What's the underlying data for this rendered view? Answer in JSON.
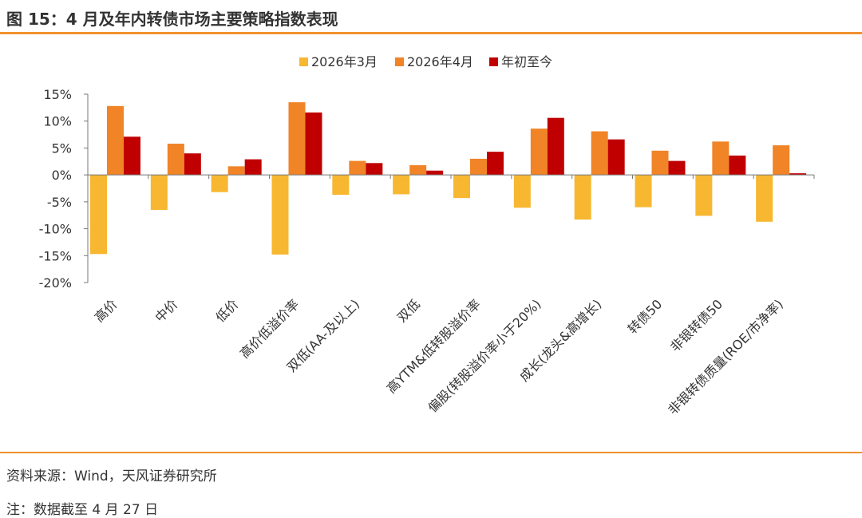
{
  "header": {
    "title": "图 15：4 月及年内转债市场主要策略指数表现"
  },
  "footer": {
    "source": "资料来源：Wind，天风证券研究所",
    "note": "注：数据截至 4 月 27 日"
  },
  "chart_data": {
    "type": "bar",
    "title": "",
    "xlabel": "",
    "ylabel": "",
    "ylim": [
      -20,
      15
    ],
    "yticks": [
      15,
      10,
      5,
      0,
      -5,
      -10,
      -15,
      -20
    ],
    "ytick_labels": [
      "15%",
      "10%",
      "5%",
      "0%",
      "-5%",
      "-10%",
      "-15%",
      "-20%"
    ],
    "grid": false,
    "legend_position": "top-center",
    "categories": [
      "高价",
      "中价",
      "低价",
      "高价低溢价率",
      "双低(AA-及以上)",
      "双低",
      "高YTM&低转股溢价率",
      "偏股(转股溢价率小于20%)",
      "成长(龙头&高增长)",
      "转债50",
      "非银转债50",
      "非银转债质量(ROE/市净率)"
    ],
    "series": [
      {
        "name": "2026年3月",
        "color": "#f7b731",
        "values": [
          -14.7,
          -6.5,
          -3.2,
          -14.8,
          -3.7,
          -3.6,
          -4.3,
          -6.1,
          -8.3,
          -6.0,
          -7.6,
          -8.7
        ]
      },
      {
        "name": "2026年4月",
        "color": "#f08427",
        "values": [
          12.8,
          5.8,
          1.6,
          13.5,
          2.6,
          1.8,
          3.0,
          8.6,
          8.1,
          4.5,
          6.2,
          5.5
        ]
      },
      {
        "name": "年初至今",
        "color": "#c00000",
        "values": [
          7.1,
          4.0,
          2.9,
          11.6,
          2.2,
          0.8,
          4.3,
          10.6,
          6.6,
          2.6,
          3.6,
          0.3
        ]
      }
    ]
  }
}
